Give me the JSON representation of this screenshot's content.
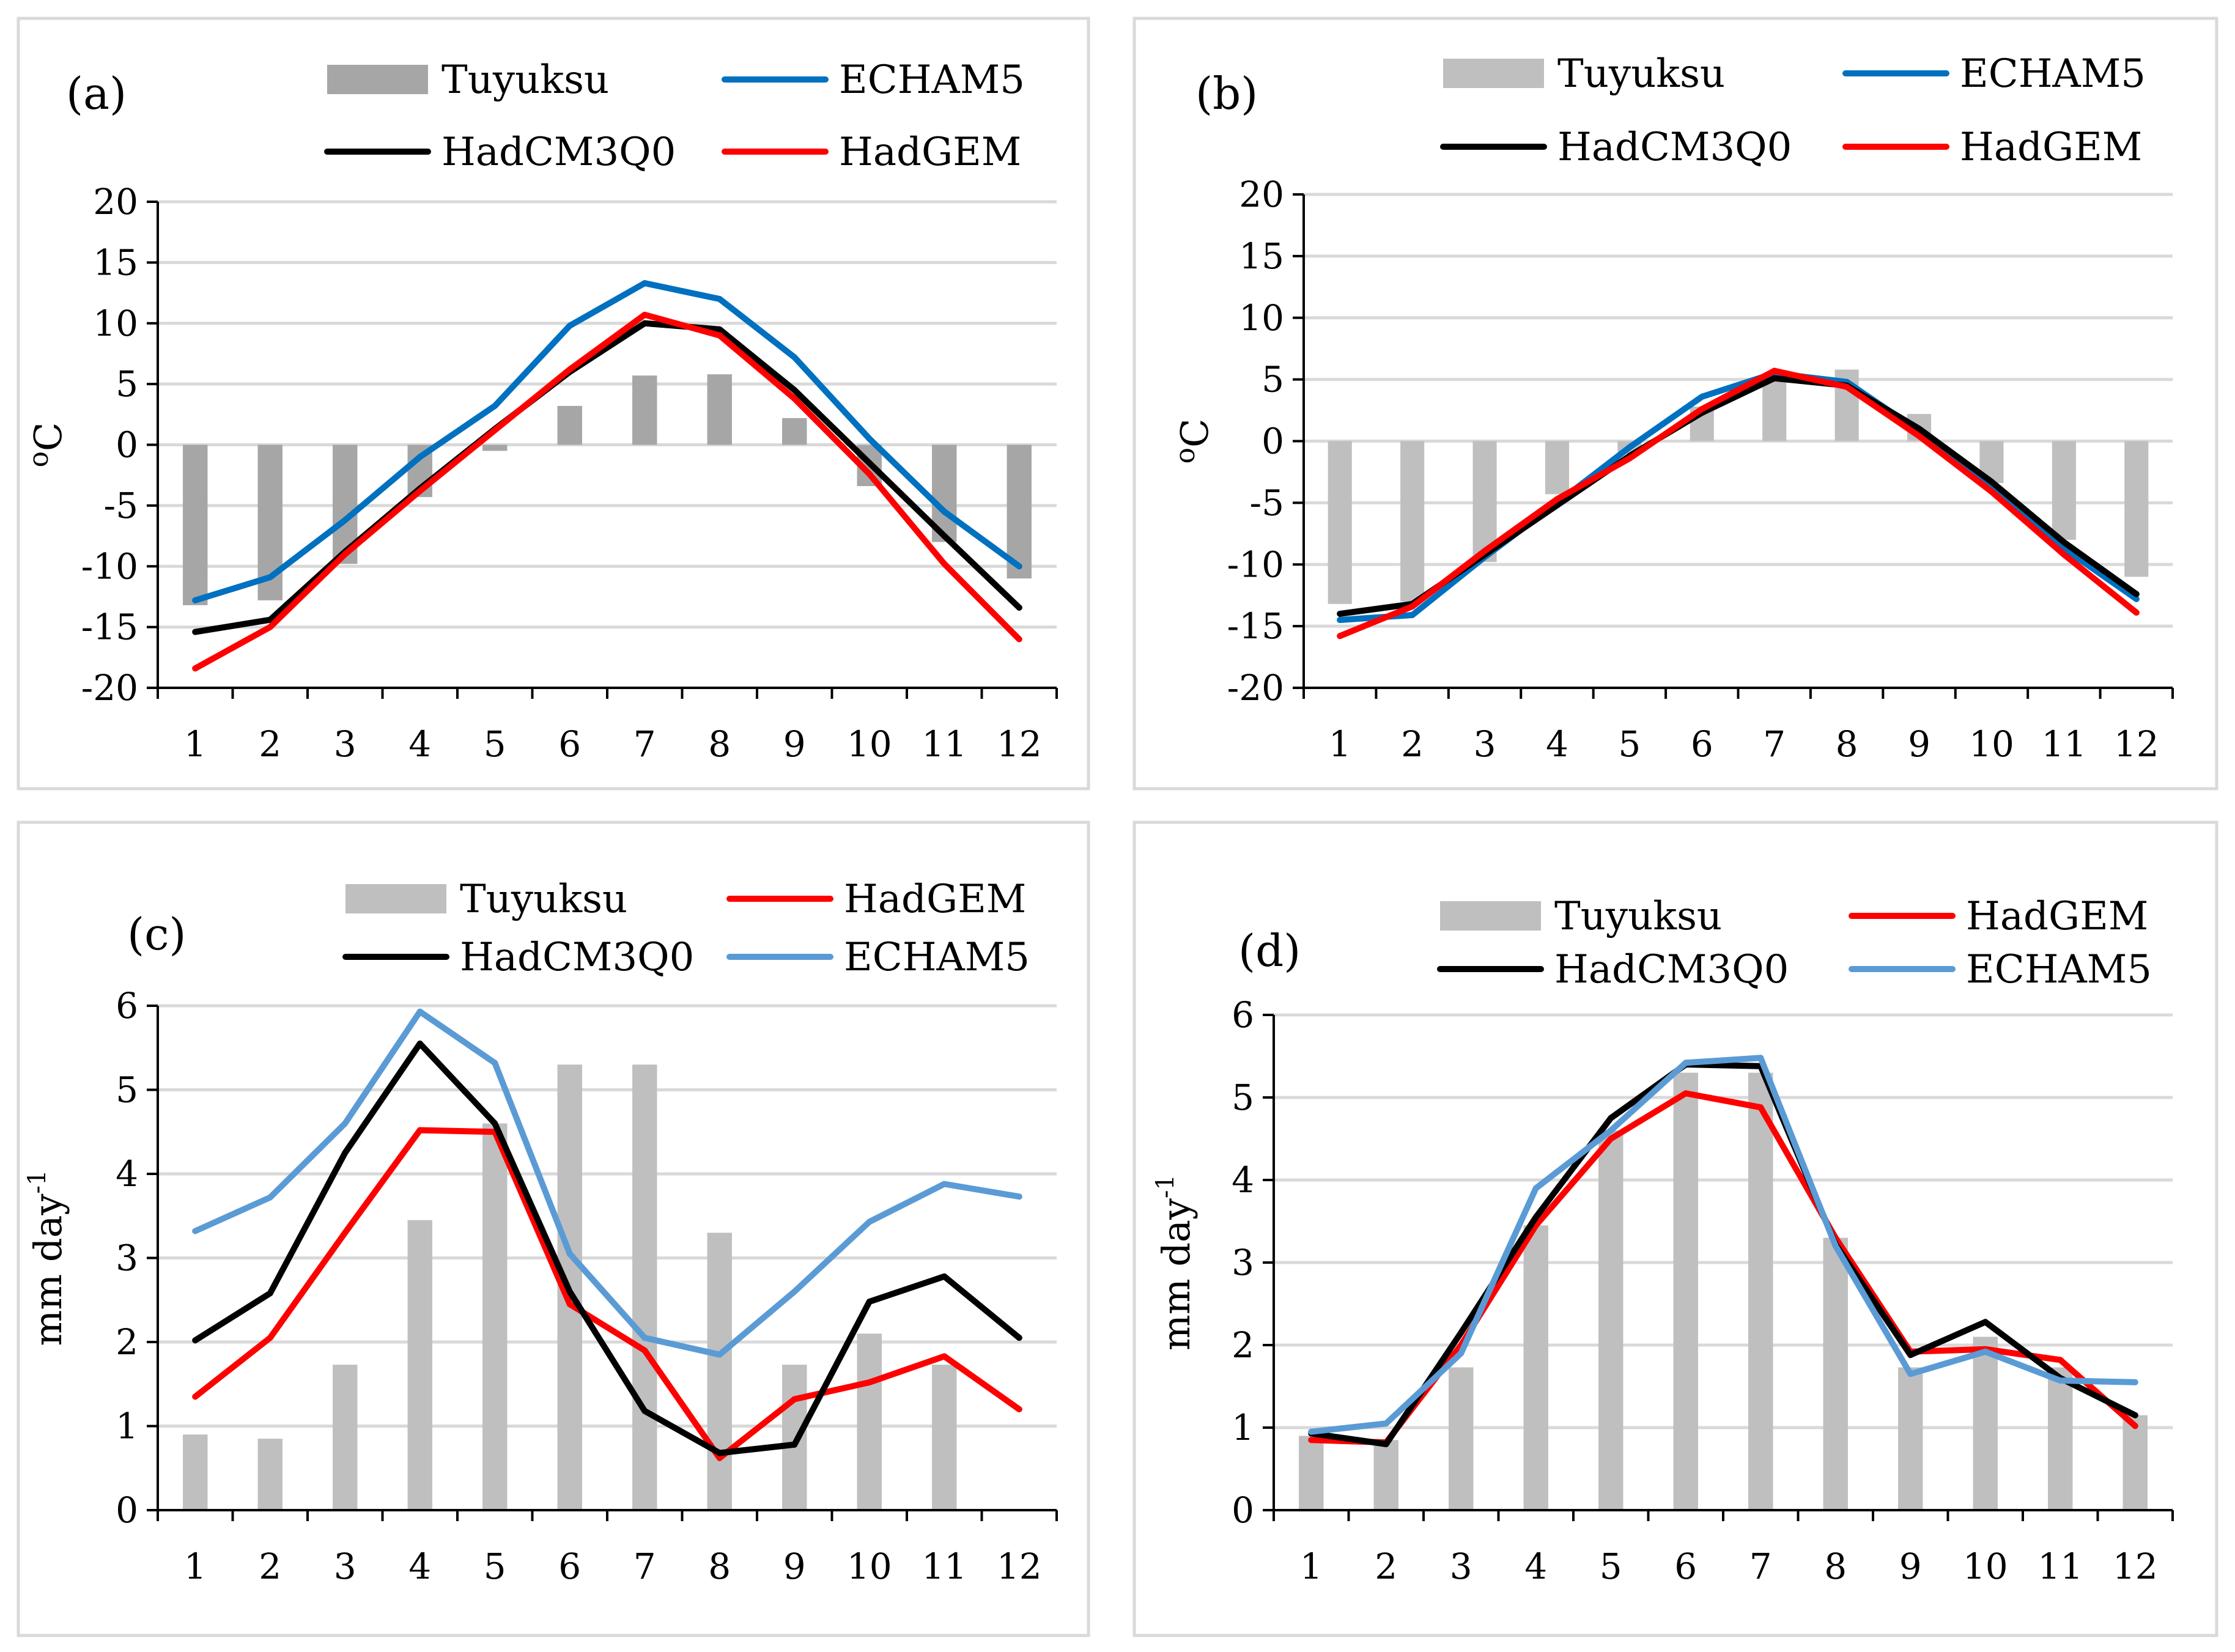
{
  "chart_data": [
    {
      "type": "bar+line",
      "panel_label": "(a)",
      "ylabel": "oC",
      "ylabel_prefix": "o",
      "ylabel_main": "C",
      "ylabel_sup": "",
      "xlabel": "",
      "categories": [
        "1",
        "2",
        "3",
        "4",
        "5",
        "6",
        "7",
        "8",
        "9",
        "10",
        "11",
        "12"
      ],
      "ylim": [
        -20,
        20
      ],
      "yticks": [
        "-20",
        "-15",
        "-10",
        "-5",
        "0",
        "5",
        "10",
        "15",
        "20"
      ],
      "grid": true,
      "bar_color": "#a6a6a6",
      "bars": {
        "name": "Tuyuksu",
        "values": [
          -13.2,
          -12.8,
          -9.8,
          -4.3,
          -0.5,
          3.2,
          5.7,
          5.8,
          2.2,
          -3.4,
          -8.0,
          -11.0
        ]
      },
      "series": [
        {
          "name": "ECHAM5",
          "color": "#0070c0",
          "values": [
            -12.8,
            -10.9,
            -6.2,
            -1.0,
            3.2,
            9.8,
            13.3,
            12.0,
            7.2,
            0.5,
            -5.5,
            -10.0
          ]
        },
        {
          "name": "HadCM3Q0",
          "color": "#000000",
          "values": [
            -15.4,
            -14.4,
            -8.8,
            -3.6,
            1.3,
            6.0,
            10.0,
            9.5,
            4.5,
            -1.5,
            -7.5,
            -13.4
          ]
        },
        {
          "name": "HadGEM",
          "color": "#ff0000",
          "values": [
            -18.4,
            -15.0,
            -9.0,
            -3.8,
            1.2,
            6.2,
            10.7,
            9.0,
            3.8,
            -2.4,
            -9.8,
            -16.0
          ]
        }
      ],
      "legend_order": [
        "Tuyuksu",
        "ECHAM5",
        "HadCM3Q0",
        "HadGEM"
      ]
    },
    {
      "type": "bar+line",
      "panel_label": "(b)",
      "ylabel": "oC",
      "ylabel_prefix": "o",
      "ylabel_main": "C",
      "ylabel_sup": "",
      "xlabel": "",
      "categories": [
        "1",
        "2",
        "3",
        "4",
        "5",
        "6",
        "7",
        "8",
        "9",
        "10",
        "11",
        "12"
      ],
      "ylim": [
        -20,
        20
      ],
      "yticks": [
        "-20",
        "-15",
        "-10",
        "-5",
        "0",
        "5",
        "10",
        "15",
        "20"
      ],
      "grid": true,
      "bar_color": "#bfbfbf",
      "bars": {
        "name": "Tuyuksu",
        "values": [
          -13.2,
          -13.0,
          -9.8,
          -4.3,
          -1.0,
          2.8,
          5.2,
          5.8,
          2.2,
          -3.4,
          -8.0,
          -11.0
        ]
      },
      "series": [
        {
          "name": "ECHAM5",
          "color": "#0070c0",
          "values": [
            -14.5,
            -14.1,
            -9.4,
            -5.0,
            -0.5,
            3.6,
            5.5,
            4.8,
            0.8,
            -3.8,
            -8.7,
            -12.8
          ]
        },
        {
          "name": "HadCM3Q0",
          "color": "#000000",
          "values": [
            -14.0,
            -13.2,
            -9.2,
            -5.2,
            -1.2,
            2.3,
            5.1,
            4.5,
            1.0,
            -3.3,
            -8.2,
            -12.4
          ]
        },
        {
          "name": "HadGEM",
          "color": "#ff0000",
          "values": [
            -15.8,
            -13.4,
            -8.9,
            -4.7,
            -1.4,
            2.6,
            5.7,
            4.4,
            0.4,
            -4.1,
            -9.2,
            -13.9
          ]
        }
      ],
      "legend_order": [
        "Tuyuksu",
        "ECHAM5",
        "HadCM3Q0",
        "HadGEM"
      ]
    },
    {
      "type": "bar+line",
      "panel_label": "(c)",
      "ylabel": "mm day-1",
      "ylabel_prefix": "",
      "ylabel_main": "mm day",
      "ylabel_sup": "-1",
      "xlabel": "",
      "categories": [
        "1",
        "2",
        "3",
        "4",
        "5",
        "6",
        "7",
        "8",
        "9",
        "10",
        "11",
        "12"
      ],
      "ylim": [
        0,
        6
      ],
      "yticks": [
        "0",
        "1",
        "2",
        "3",
        "4",
        "5",
        "6"
      ],
      "grid": true,
      "bar_color": "#bfbfbf",
      "bars": {
        "name": "Tuyuksu",
        "values": [
          0.9,
          0.85,
          1.73,
          3.45,
          4.6,
          5.3,
          5.3,
          3.3,
          1.73,
          2.1,
          1.73,
          0
        ]
      },
      "series": [
        {
          "name": "HadGEM",
          "color": "#ff0000",
          "values": [
            1.35,
            2.05,
            3.3,
            4.52,
            4.5,
            2.45,
            1.9,
            0.62,
            1.32,
            1.52,
            1.83,
            1.2
          ]
        },
        {
          "name": "HadCM3Q0",
          "color": "#000000",
          "values": [
            2.02,
            2.58,
            4.25,
            5.55,
            4.6,
            2.6,
            1.18,
            0.68,
            0.78,
            2.48,
            2.78,
            2.05
          ]
        },
        {
          "name": "ECHAM5",
          "color": "#5b9bd5",
          "values": [
            3.32,
            3.72,
            4.6,
            5.93,
            5.32,
            3.05,
            2.05,
            1.85,
            2.6,
            3.43,
            3.88,
            3.73
          ]
        }
      ],
      "legend_order": [
        "Tuyuksu",
        "HadGEM",
        "HadCM3Q0",
        "ECHAM5"
      ]
    },
    {
      "type": "bar+line",
      "panel_label": "(d)",
      "ylabel": "mm day-1",
      "ylabel_prefix": "",
      "ylabel_main": "mm day",
      "ylabel_sup": "-1",
      "xlabel": "",
      "categories": [
        "1",
        "2",
        "3",
        "4",
        "5",
        "6",
        "7",
        "8",
        "9",
        "10",
        "11",
        "12"
      ],
      "ylim": [
        0,
        6
      ],
      "yticks": [
        "0",
        "1",
        "2",
        "3",
        "4",
        "5",
        "6"
      ],
      "grid": true,
      "bar_color": "#bfbfbf",
      "bars": {
        "name": "Tuyuksu",
        "values": [
          0.9,
          0.85,
          1.73,
          3.45,
          4.6,
          5.3,
          5.3,
          3.3,
          1.73,
          2.1,
          1.73,
          1.15
        ]
      },
      "series": [
        {
          "name": "HadGEM",
          "color": "#ff0000",
          "values": [
            0.85,
            0.82,
            2.0,
            3.45,
            4.5,
            5.05,
            4.88,
            3.3,
            1.92,
            1.95,
            1.82,
            1.02
          ]
        },
        {
          "name": "HadCM3Q0",
          "color": "#000000",
          "values": [
            0.93,
            0.8,
            2.15,
            3.55,
            4.75,
            5.4,
            5.38,
            3.22,
            1.88,
            2.28,
            1.6,
            1.15
          ]
        },
        {
          "name": "ECHAM5",
          "color": "#5b9bd5",
          "values": [
            0.95,
            1.05,
            1.9,
            3.9,
            4.6,
            5.42,
            5.48,
            3.2,
            1.65,
            1.92,
            1.57,
            1.55
          ]
        }
      ],
      "legend_order": [
        "Tuyuksu",
        "HadGEM",
        "HadCM3Q0",
        "ECHAM5"
      ]
    }
  ]
}
